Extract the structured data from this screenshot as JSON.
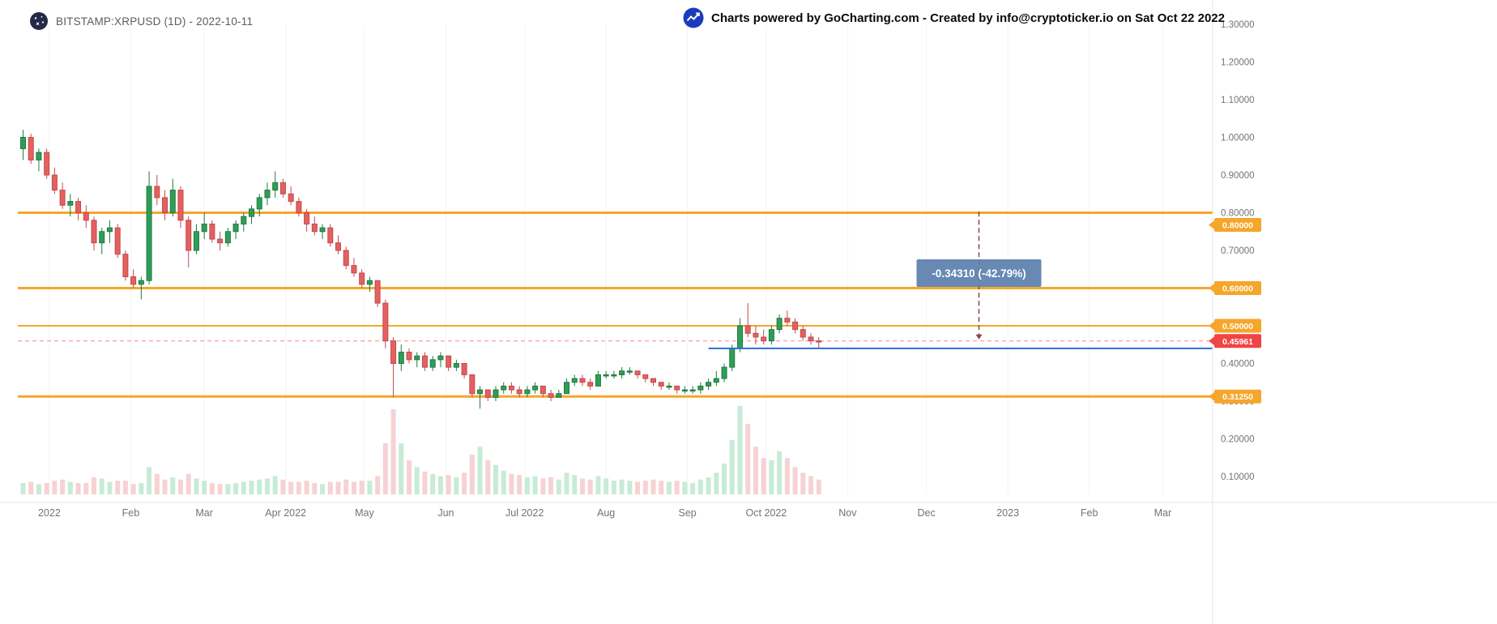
{
  "header": {
    "symbol_title": "BITSTAMP:XRPUSD (1D) - 2022-10-11",
    "credit_text": "Charts powered by GoCharting.com - Created by info@cryptoticker.io on Sat Oct 22 2022",
    "icons": {
      "logo": "gocharting-globe-logo",
      "credit": "line-chart-up-icon"
    }
  },
  "colors": {
    "up": "#2f9e57",
    "up_border": "#1f7a42",
    "down": "#e56060",
    "down_border": "#c04b4b",
    "vol_up": "#c7ebd6",
    "vol_down": "#f7d2d2",
    "level": "#f5a62b",
    "last": "#ef4545",
    "last_line": "#f08a8a",
    "trend": "#2e6fd4",
    "measure_line": "#8a4444",
    "measure_box": "#5b80ae",
    "axis_text": "#737373"
  },
  "chart_data": {
    "type": "candlestick",
    "title": "BITSTAMP:XRPUSD (1D) - 2022-10-11",
    "symbol": "BITSTAMP:XRPUSD",
    "interval": "1D",
    "chart_date": "2022-10-11",
    "ylim": [
      0.1,
      1.3
    ],
    "xlim": [
      "2021-12-20",
      "2023-03-20"
    ],
    "volume_max": 80,
    "columns": [
      "date",
      "open",
      "high",
      "low",
      "close",
      "volume"
    ],
    "candles": [
      [
        "2021-12-22",
        0.97,
        1.02,
        0.94,
        1.0,
        10
      ],
      [
        "2021-12-25",
        1.0,
        1.01,
        0.93,
        0.94,
        11
      ],
      [
        "2021-12-28",
        0.94,
        0.97,
        0.91,
        0.96,
        9
      ],
      [
        "2021-12-31",
        0.96,
        0.97,
        0.89,
        0.9,
        10
      ],
      [
        "2022-01-03",
        0.9,
        0.92,
        0.85,
        0.86,
        12
      ],
      [
        "2022-01-06",
        0.86,
        0.88,
        0.81,
        0.82,
        13
      ],
      [
        "2022-01-09",
        0.82,
        0.85,
        0.79,
        0.83,
        11
      ],
      [
        "2022-01-12",
        0.83,
        0.84,
        0.78,
        0.8,
        10
      ],
      [
        "2022-01-15",
        0.8,
        0.82,
        0.76,
        0.78,
        10
      ],
      [
        "2022-01-18",
        0.78,
        0.79,
        0.7,
        0.72,
        15
      ],
      [
        "2022-01-21",
        0.72,
        0.76,
        0.69,
        0.75,
        14
      ],
      [
        "2022-01-24",
        0.75,
        0.78,
        0.72,
        0.76,
        11
      ],
      [
        "2022-01-27",
        0.76,
        0.77,
        0.68,
        0.69,
        12
      ],
      [
        "2022-01-30",
        0.69,
        0.7,
        0.62,
        0.63,
        12
      ],
      [
        "2022-02-02",
        0.63,
        0.65,
        0.6,
        0.61,
        9
      ],
      [
        "2022-02-05",
        0.61,
        0.63,
        0.57,
        0.62,
        10
      ],
      [
        "2022-02-08",
        0.62,
        0.91,
        0.61,
        0.87,
        24
      ],
      [
        "2022-02-11",
        0.87,
        0.9,
        0.82,
        0.84,
        18
      ],
      [
        "2022-02-14",
        0.84,
        0.86,
        0.78,
        0.8,
        13
      ],
      [
        "2022-02-17",
        0.8,
        0.89,
        0.79,
        0.86,
        15
      ],
      [
        "2022-02-20",
        0.86,
        0.87,
        0.76,
        0.78,
        13
      ],
      [
        "2022-02-23",
        0.78,
        0.79,
        0.655,
        0.7,
        18
      ],
      [
        "2022-02-26",
        0.7,
        0.77,
        0.69,
        0.75,
        14
      ],
      [
        "2022-03-01",
        0.75,
        0.8,
        0.73,
        0.77,
        12
      ],
      [
        "2022-03-04",
        0.77,
        0.78,
        0.72,
        0.73,
        10
      ],
      [
        "2022-03-07",
        0.73,
        0.75,
        0.7,
        0.72,
        9
      ],
      [
        "2022-03-10",
        0.72,
        0.76,
        0.71,
        0.75,
        9
      ],
      [
        "2022-03-13",
        0.75,
        0.78,
        0.73,
        0.77,
        10
      ],
      [
        "2022-03-16",
        0.77,
        0.8,
        0.75,
        0.79,
        11
      ],
      [
        "2022-03-19",
        0.79,
        0.82,
        0.77,
        0.81,
        12
      ],
      [
        "2022-03-22",
        0.81,
        0.85,
        0.79,
        0.84,
        13
      ],
      [
        "2022-03-25",
        0.84,
        0.88,
        0.82,
        0.86,
        14
      ],
      [
        "2022-03-28",
        0.86,
        0.91,
        0.84,
        0.88,
        16
      ],
      [
        "2022-03-31",
        0.88,
        0.89,
        0.84,
        0.85,
        13
      ],
      [
        "2022-04-03",
        0.85,
        0.87,
        0.82,
        0.83,
        11
      ],
      [
        "2022-04-06",
        0.83,
        0.84,
        0.79,
        0.8,
        11
      ],
      [
        "2022-04-09",
        0.8,
        0.81,
        0.75,
        0.77,
        12
      ],
      [
        "2022-04-12",
        0.77,
        0.79,
        0.74,
        0.75,
        10
      ],
      [
        "2022-04-15",
        0.75,
        0.77,
        0.73,
        0.76,
        9
      ],
      [
        "2022-04-18",
        0.76,
        0.77,
        0.71,
        0.72,
        11
      ],
      [
        "2022-04-21",
        0.72,
        0.74,
        0.69,
        0.7,
        11
      ],
      [
        "2022-04-24",
        0.7,
        0.71,
        0.65,
        0.66,
        13
      ],
      [
        "2022-04-27",
        0.66,
        0.68,
        0.63,
        0.64,
        11
      ],
      [
        "2022-04-30",
        0.64,
        0.65,
        0.6,
        0.61,
        12
      ],
      [
        "2022-05-03",
        0.61,
        0.63,
        0.59,
        0.62,
        12
      ],
      [
        "2022-05-06",
        0.62,
        0.62,
        0.55,
        0.56,
        16
      ],
      [
        "2022-05-09",
        0.56,
        0.57,
        0.44,
        0.46,
        45
      ],
      [
        "2022-05-12",
        0.46,
        0.47,
        0.31,
        0.4,
        75
      ],
      [
        "2022-05-15",
        0.4,
        0.45,
        0.38,
        0.43,
        45
      ],
      [
        "2022-05-18",
        0.43,
        0.44,
        0.4,
        0.41,
        30
      ],
      [
        "2022-05-21",
        0.41,
        0.43,
        0.39,
        0.42,
        24
      ],
      [
        "2022-05-24",
        0.42,
        0.43,
        0.38,
        0.39,
        20
      ],
      [
        "2022-05-27",
        0.39,
        0.42,
        0.38,
        0.41,
        18
      ],
      [
        "2022-05-30",
        0.41,
        0.43,
        0.39,
        0.42,
        16
      ],
      [
        "2022-06-02",
        0.42,
        0.42,
        0.38,
        0.39,
        17
      ],
      [
        "2022-06-05",
        0.39,
        0.41,
        0.38,
        0.4,
        15
      ],
      [
        "2022-06-08",
        0.4,
        0.4,
        0.36,
        0.37,
        19
      ],
      [
        "2022-06-11",
        0.37,
        0.37,
        0.31,
        0.32,
        35
      ],
      [
        "2022-06-14",
        0.32,
        0.34,
        0.28,
        0.33,
        42
      ],
      [
        "2022-06-17",
        0.33,
        0.33,
        0.3,
        0.31,
        30
      ],
      [
        "2022-06-20",
        0.31,
        0.34,
        0.3,
        0.33,
        26
      ],
      [
        "2022-06-23",
        0.33,
        0.35,
        0.32,
        0.34,
        21
      ],
      [
        "2022-06-26",
        0.34,
        0.35,
        0.32,
        0.33,
        18
      ],
      [
        "2022-06-29",
        0.33,
        0.34,
        0.31,
        0.32,
        17
      ],
      [
        "2022-07-02",
        0.32,
        0.34,
        0.31,
        0.33,
        15
      ],
      [
        "2022-07-05",
        0.33,
        0.35,
        0.32,
        0.34,
        16
      ],
      [
        "2022-07-08",
        0.34,
        0.34,
        0.31,
        0.32,
        14
      ],
      [
        "2022-07-11",
        0.32,
        0.33,
        0.3,
        0.31,
        15
      ],
      [
        "2022-07-14",
        0.31,
        0.33,
        0.31,
        0.32,
        13
      ],
      [
        "2022-07-17",
        0.32,
        0.36,
        0.32,
        0.35,
        19
      ],
      [
        "2022-07-20",
        0.35,
        0.37,
        0.34,
        0.36,
        17
      ],
      [
        "2022-07-23",
        0.36,
        0.37,
        0.34,
        0.35,
        14
      ],
      [
        "2022-07-26",
        0.35,
        0.36,
        0.33,
        0.34,
        13
      ],
      [
        "2022-07-29",
        0.34,
        0.38,
        0.34,
        0.37,
        16
      ],
      [
        "2022-08-01",
        0.37,
        0.38,
        0.36,
        0.37,
        14
      ],
      [
        "2022-08-04",
        0.37,
        0.38,
        0.36,
        0.37,
        12
      ],
      [
        "2022-08-07",
        0.37,
        0.39,
        0.36,
        0.38,
        13
      ],
      [
        "2022-08-10",
        0.38,
        0.39,
        0.37,
        0.38,
        12
      ],
      [
        "2022-08-13",
        0.38,
        0.38,
        0.36,
        0.37,
        11
      ],
      [
        "2022-08-16",
        0.37,
        0.37,
        0.35,
        0.36,
        12
      ],
      [
        "2022-08-19",
        0.36,
        0.36,
        0.34,
        0.35,
        13
      ],
      [
        "2022-08-22",
        0.35,
        0.35,
        0.33,
        0.34,
        12
      ],
      [
        "2022-08-25",
        0.34,
        0.35,
        0.33,
        0.34,
        11
      ],
      [
        "2022-08-28",
        0.34,
        0.34,
        0.32,
        0.33,
        12
      ],
      [
        "2022-08-31",
        0.33,
        0.34,
        0.32,
        0.33,
        11
      ],
      [
        "2022-09-03",
        0.33,
        0.34,
        0.32,
        0.33,
        10
      ],
      [
        "2022-09-06",
        0.33,
        0.35,
        0.32,
        0.34,
        13
      ],
      [
        "2022-09-09",
        0.34,
        0.36,
        0.33,
        0.35,
        15
      ],
      [
        "2022-09-12",
        0.35,
        0.38,
        0.34,
        0.36,
        19
      ],
      [
        "2022-09-15",
        0.36,
        0.4,
        0.35,
        0.39,
        27
      ],
      [
        "2022-09-18",
        0.39,
        0.45,
        0.38,
        0.44,
        48
      ],
      [
        "2022-09-21",
        0.44,
        0.52,
        0.43,
        0.5,
        78
      ],
      [
        "2022-09-24",
        0.5,
        0.56,
        0.47,
        0.48,
        62
      ],
      [
        "2022-09-27",
        0.48,
        0.5,
        0.45,
        0.47,
        42
      ],
      [
        "2022-09-30",
        0.47,
        0.49,
        0.45,
        0.46,
        32
      ],
      [
        "2022-10-03",
        0.46,
        0.5,
        0.45,
        0.49,
        30
      ],
      [
        "2022-10-06",
        0.49,
        0.53,
        0.48,
        0.52,
        38
      ],
      [
        "2022-10-09",
        0.52,
        0.54,
        0.5,
        0.51,
        32
      ],
      [
        "2022-10-12",
        0.51,
        0.52,
        0.48,
        0.49,
        24
      ],
      [
        "2022-10-15",
        0.49,
        0.5,
        0.46,
        0.47,
        19
      ],
      [
        "2022-10-18",
        0.47,
        0.48,
        0.45,
        0.46,
        16
      ],
      [
        "2022-10-21",
        0.46,
        0.47,
        0.44,
        0.45961,
        13
      ]
    ],
    "levels": [
      {
        "price": 0.8,
        "label": "0.80000",
        "width": 3,
        "badge_dy": 15
      },
      {
        "price": 0.6,
        "label": "0.60000",
        "width": 3,
        "badge_dy": 0
      },
      {
        "price": 0.5,
        "label": "0.50000",
        "width": 2,
        "badge_dy": 0
      },
      {
        "price": 0.3125,
        "label": "0.31250",
        "width": 3,
        "badge_dy": 0
      }
    ],
    "last_price": {
      "price": 0.45961,
      "label": "0.45961"
    },
    "trend_line": {
      "price": 0.44,
      "from_date": "2022-09-09",
      "to_date": "2023-03-20"
    },
    "measurement": {
      "label": "-0.34310 (-42.79%)",
      "value": -0.3431,
      "percent": -42.79,
      "from_price": 0.80271,
      "to_price": 0.45961,
      "date": "2022-12-21"
    },
    "x_axis_ticks": [
      {
        "date": "2022-01-01",
        "label": "2022"
      },
      {
        "date": "2022-02-01",
        "label": "Feb"
      },
      {
        "date": "2022-03-01",
        "label": "Mar"
      },
      {
        "date": "2022-04-01",
        "label": "Apr 2022"
      },
      {
        "date": "2022-05-01",
        "label": "May"
      },
      {
        "date": "2022-06-01",
        "label": "Jun"
      },
      {
        "date": "2022-07-01",
        "label": "Jul 2022"
      },
      {
        "date": "2022-08-01",
        "label": "Aug"
      },
      {
        "date": "2022-09-01",
        "label": "Sep"
      },
      {
        "date": "2022-10-01",
        "label": "Oct 2022"
      },
      {
        "date": "2022-11-01",
        "label": "Nov"
      },
      {
        "date": "2022-12-01",
        "label": "Dec"
      },
      {
        "date": "2023-01-01",
        "label": "2023"
      },
      {
        "date": "2023-02-01",
        "label": "Feb"
      },
      {
        "date": "2023-03-01",
        "label": "Mar"
      }
    ],
    "y_axis_ticks": [
      {
        "value": 1.3,
        "label": "1.30000"
      },
      {
        "value": 1.2,
        "label": "1.20000"
      },
      {
        "value": 1.1,
        "label": "1.10000"
      },
      {
        "value": 1.0,
        "label": "1.00000"
      },
      {
        "value": 0.9,
        "label": "0.90000"
      },
      {
        "value": 0.8,
        "label": "0.80000"
      },
      {
        "value": 0.7,
        "label": "0.70000"
      },
      {
        "value": 0.6,
        "label": "0.60000"
      },
      {
        "value": 0.5,
        "label": "0.50000"
      },
      {
        "value": 0.4,
        "label": "0.40000"
      },
      {
        "value": 0.3,
        "label": "0.30000"
      },
      {
        "value": 0.2,
        "label": "0.20000"
      },
      {
        "value": 0.1,
        "label": "0.10000"
      }
    ]
  }
}
